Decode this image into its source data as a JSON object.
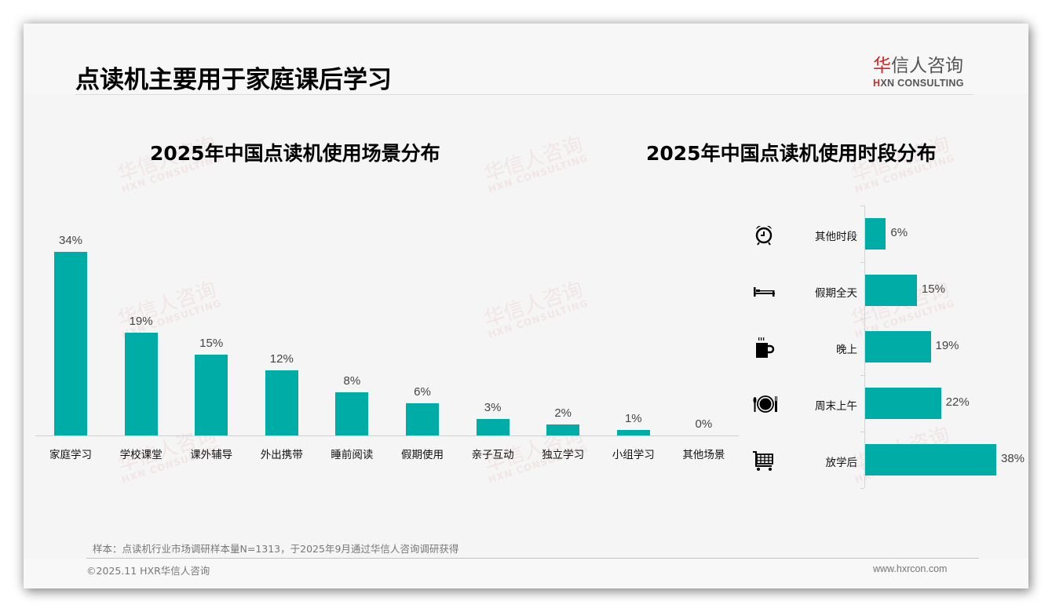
{
  "header": {
    "title": "点读机主要用于家庭课后学习",
    "logo": {
      "cn_mark": "华",
      "cn_rest": "信人咨询",
      "en_mark": "H",
      "en_rest": "XN CONSULTING"
    }
  },
  "watermark": {
    "cn": "华信人咨询",
    "en": "HXN CONSULTING"
  },
  "charts": {
    "left_title": "2025年中国点读机使用场景分布",
    "right_title": "2025年中国点读机使用时段分布"
  },
  "chart_data": [
    {
      "type": "bar",
      "orientation": "vertical",
      "title": "2025年中国点读机使用场景分布",
      "categories": [
        "家庭学习",
        "学校课堂",
        "课外辅导",
        "外出携带",
        "睡前阅读",
        "假期使用",
        "亲子互动",
        "独立学习",
        "小组学习",
        "其他场景"
      ],
      "values": [
        34,
        19,
        15,
        12,
        8,
        6,
        3,
        2,
        1,
        0
      ],
      "value_labels": [
        "34%",
        "19%",
        "15%",
        "12%",
        "8%",
        "6%",
        "3%",
        "2%",
        "1%",
        "0%"
      ],
      "unit": "%",
      "color": "#00ada6",
      "xlabel": "",
      "ylabel": "",
      "grid": false,
      "legend": "none"
    },
    {
      "type": "bar",
      "orientation": "horizontal",
      "title": "2025年中国点读机使用时段分布",
      "categories": [
        "其他时段",
        "假期全天",
        "晚上",
        "周末上午",
        "放学后"
      ],
      "values": [
        6,
        15,
        19,
        22,
        38
      ],
      "value_labels": [
        "6%",
        "15%",
        "19%",
        "22%",
        "38%"
      ],
      "icons": [
        "alarm-clock-icon",
        "bed-icon",
        "hot-drink-icon",
        "plate-cutlery-icon",
        "shopping-cart-icon"
      ],
      "unit": "%",
      "color": "#00ada6",
      "grid": false,
      "legend": "none"
    }
  ],
  "footer": {
    "source": "样本：点读机行业市场调研样本量N=1313，于2025年9月通过华信人咨询调研获得",
    "copyright": "©2025.11 HXR华信人咨询",
    "website": "www.hxrcon.com"
  }
}
